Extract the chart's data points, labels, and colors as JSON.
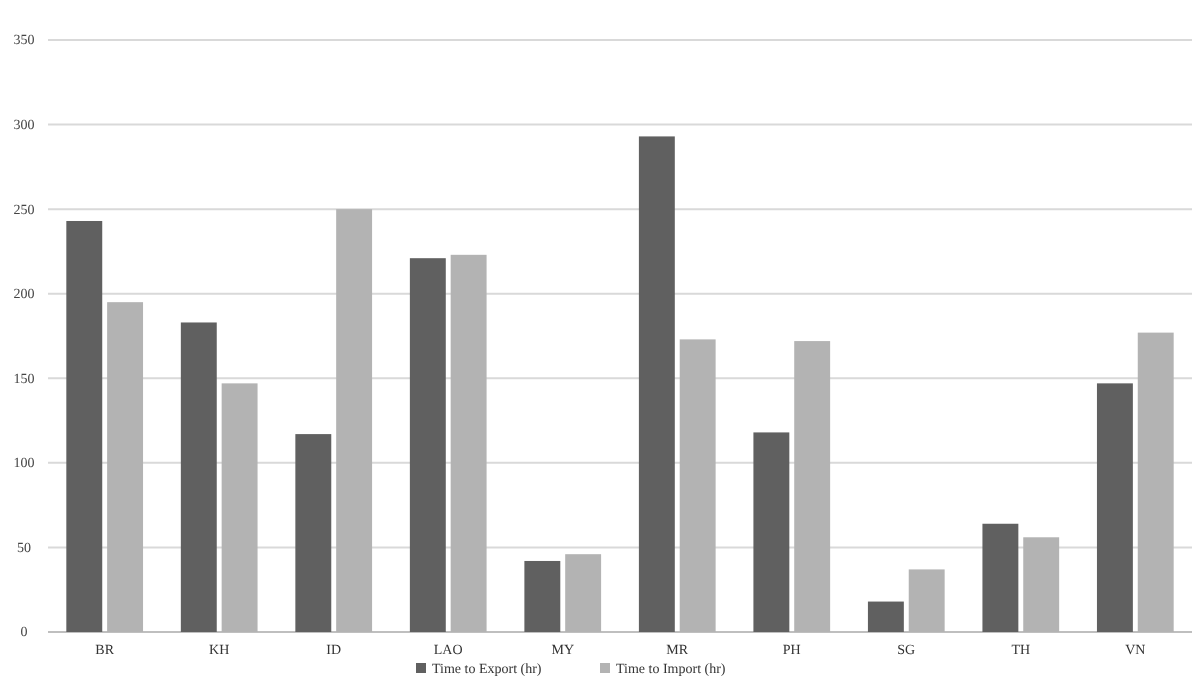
{
  "chart_data": {
    "type": "bar",
    "categories": [
      "BR",
      "KH",
      "ID",
      "LAO",
      "MY",
      "MR",
      "PH",
      "SG",
      "TH",
      "VN"
    ],
    "series": [
      {
        "name": "Time to Export (hr)",
        "color": "#606060",
        "values": [
          243,
          183,
          117,
          221,
          42,
          293,
          118,
          18,
          64,
          147
        ]
      },
      {
        "name": "Time to Import (hr)",
        "color": "#b3b3b3",
        "values": [
          195,
          147,
          250,
          223,
          46,
          173,
          172,
          37,
          56,
          177
        ]
      }
    ],
    "ylim": [
      0,
      350
    ],
    "yticks": [
      0,
      50,
      100,
      150,
      200,
      250,
      300,
      350
    ],
    "grid": "y",
    "legend": "bottom"
  }
}
